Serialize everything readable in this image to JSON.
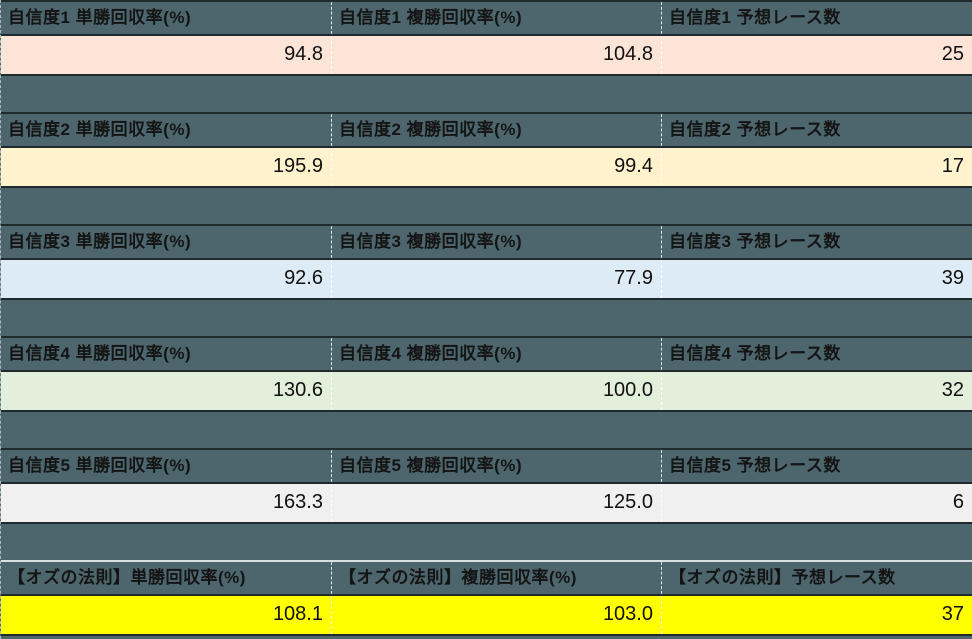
{
  "sheet": {
    "background_color": "#4D666E",
    "grid_line_color": "#FFFFFF",
    "dark_border_color": "#1F2A2E",
    "light_border_color": "#D8E0E3",
    "header_text_color": "#141414",
    "value_text_color": "#101010"
  },
  "blocks": [
    {
      "name": "confidence-1",
      "row_color": "#FCE4D6",
      "cells": [
        {
          "header": "自信度1 単勝回収率(%)",
          "value": "94.8"
        },
        {
          "header": "自信度1 複勝回収率(%)",
          "value": "104.8"
        },
        {
          "header": "自信度1 予想レース数",
          "value": "25"
        }
      ]
    },
    {
      "name": "confidence-2",
      "row_color": "#FFF2CC",
      "cells": [
        {
          "header": "自信度2 単勝回収率(%)",
          "value": "195.9"
        },
        {
          "header": "自信度2 複勝回収率(%)",
          "value": "99.4"
        },
        {
          "header": "自信度2 予想レース数",
          "value": "17"
        }
      ]
    },
    {
      "name": "confidence-3",
      "row_color": "#DDEBF7",
      "cells": [
        {
          "header": "自信度3 単勝回収率(%)",
          "value": "92.6"
        },
        {
          "header": "自信度3 複勝回収率(%)",
          "value": "77.9"
        },
        {
          "header": "自信度3 予想レース数",
          "value": "39"
        }
      ]
    },
    {
      "name": "confidence-4",
      "row_color": "#E2EFDA",
      "cells": [
        {
          "header": "自信度4 単勝回収率(%)",
          "value": "130.6"
        },
        {
          "header": "自信度4 複勝回収率(%)",
          "value": "100.0"
        },
        {
          "header": "自信度4 予想レース数",
          "value": "32"
        }
      ]
    },
    {
      "name": "confidence-5",
      "row_color": "#F0F0F0",
      "cells": [
        {
          "header": "自信度5 単勝回収率(%)",
          "value": "163.3"
        },
        {
          "header": "自信度5 複勝回収率(%)",
          "value": "125.0"
        },
        {
          "header": "自信度5 予想レース数",
          "value": "6"
        }
      ]
    },
    {
      "name": "oz-rule",
      "row_color": "#FFFF00",
      "top_line": "light",
      "last": true,
      "cells": [
        {
          "header": "【オズの法則】単勝回収率(%)",
          "value": "108.1"
        },
        {
          "header": "【オズの法則】複勝回収率(%)",
          "value": "103.0"
        },
        {
          "header": "【オズの法則】予想レース数",
          "value": "37"
        }
      ]
    }
  ]
}
